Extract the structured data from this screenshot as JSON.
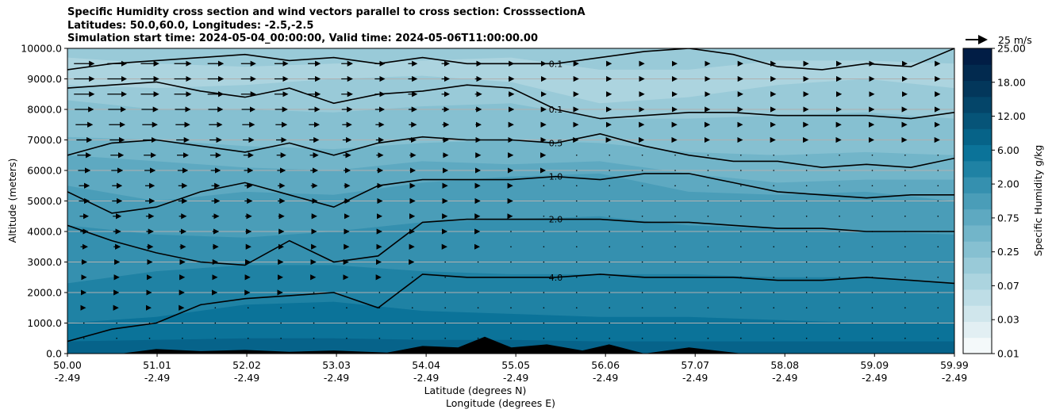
{
  "chart_data": {
    "type": "contour",
    "title_lines": [
      "Specific Humidity cross section and wind vectors parallel to cross section: CrosssectionA",
      "Latitudes: 50.0,60.0, Longitudes: -2.5,-2.5",
      "Simulation start time: 2024-05-04_00:00:00, Valid time: 2024-05-06T11:00:00.00"
    ],
    "ylabel": "Altitude (meters)",
    "xlabel_lat": "Latitude (degrees N)",
    "xlabel_lon": "Longitude (degrees E)",
    "ylim": [
      0,
      10000
    ],
    "xlim": [
      50.0,
      59.99
    ],
    "y_ticks": [
      "0.0",
      "1000.0",
      "2000.0",
      "3000.0",
      "4000.0",
      "5000.0",
      "6000.0",
      "7000.0",
      "8000.0",
      "9000.0",
      "10000.0"
    ],
    "y_tick_values": [
      0,
      1000,
      2000,
      3000,
      4000,
      5000,
      6000,
      7000,
      8000,
      9000,
      10000
    ],
    "x_tick_lat": [
      "50.00",
      "51.01",
      "52.02",
      "53.03",
      "54.04",
      "55.05",
      "56.06",
      "57.07",
      "58.08",
      "59.09",
      "59.99"
    ],
    "x_tick_lon": [
      "-2.49",
      "-2.49",
      "-2.49",
      "-2.49",
      "-2.49",
      "-2.49",
      "-2.49",
      "-2.49",
      "-2.49",
      "-2.49",
      "-2.49"
    ],
    "x_tick_values": [
      50.0,
      51.01,
      52.02,
      53.03,
      54.04,
      55.05,
      56.06,
      57.07,
      58.08,
      59.09,
      59.99
    ],
    "colorbar": {
      "label": "Specific Humidity g/kg",
      "tick_labels": [
        "0.01",
        "0.03",
        "0.07",
        "0.25",
        "0.75",
        "2.00",
        "6.00",
        "12.00",
        "18.00",
        "25.00"
      ],
      "levels": [
        0.01,
        0.02,
        0.03,
        0.05,
        0.07,
        0.1,
        0.25,
        0.5,
        0.75,
        1.0,
        2.0,
        4.0,
        6.0,
        8.0,
        12.0,
        15.0,
        18.0,
        21.0,
        25.0
      ],
      "colors": [
        "#f4f9fa",
        "#e2eff3",
        "#d0e6ec",
        "#bedde6",
        "#acd4df",
        "#99cad8",
        "#86c0d1",
        "#72b5c9",
        "#5ea9c1",
        "#4a9db8",
        "#3590af",
        "#1f82a4",
        "#0b7399",
        "#066388",
        "#065478",
        "#044569",
        "#03375b",
        "#022a4f",
        "#011d45"
      ]
    },
    "humidity_bands": [
      {
        "level": 0.07,
        "color": "#acd4df",
        "z": [
          9700,
          9500,
          9400,
          9500,
          9600,
          9700,
          9300,
          9300,
          9600,
          9600,
          9500
        ]
      },
      {
        "level": 0.1,
        "color": "#99cad8",
        "z": [
          8800,
          8700,
          8800,
          9000,
          9100,
          8900,
          8200,
          8400,
          8800,
          9000,
          8700
        ]
      },
      {
        "level": 0.25,
        "color": "#86c0d1",
        "z": [
          8300,
          8000,
          8000,
          7900,
          8100,
          8200,
          7700,
          7700,
          7800,
          7900,
          7700
        ]
      },
      {
        "level": 0.5,
        "color": "#72b5c9",
        "z": [
          7100,
          7000,
          6800,
          6700,
          6900,
          7000,
          6900,
          6600,
          6500,
          6600,
          6500
        ]
      },
      {
        "level": 0.75,
        "color": "#5ea9c1",
        "z": [
          6500,
          6300,
          6100,
          6000,
          6300,
          6200,
          6300,
          5900,
          5600,
          5700,
          5700
        ]
      },
      {
        "level": 1.0,
        "color": "#4a9db8",
        "z": [
          5500,
          5000,
          5300,
          5200,
          5600,
          5800,
          5900,
          5300,
          5200,
          5300,
          5000
        ]
      },
      {
        "level": 2.0,
        "color": "#3590af",
        "z": [
          4200,
          3900,
          3800,
          4000,
          4300,
          4400,
          4500,
          4200,
          4100,
          4000,
          3900
        ]
      },
      {
        "level": 4.0,
        "color": "#1f82a4",
        "z": [
          2300,
          2700,
          2900,
          2900,
          2700,
          2600,
          2600,
          2600,
          2500,
          2500,
          2300
        ]
      },
      {
        "level": 6.0,
        "color": "#0b7399",
        "z": [
          1000,
          1200,
          1600,
          1700,
          1400,
          1300,
          1200,
          1200,
          1100,
          1000,
          1000
        ]
      },
      {
        "level": 8.0,
        "color": "#06638a",
        "z": [
          400,
          450,
          500,
          500,
          450,
          450,
          400,
          400,
          400,
          400,
          400
        ]
      }
    ],
    "contour_lines": [
      {
        "label": "0.1",
        "x": [
          50.0,
          50.5,
          51.0,
          51.5,
          52.0,
          52.5,
          53.0,
          53.5,
          54.0,
          54.5,
          55.0,
          55.5,
          56.0,
          56.5,
          57.0,
          57.5,
          58.0,
          58.5,
          59.0,
          59.5,
          59.99
        ],
        "y": [
          9300,
          9500,
          9600,
          9700,
          9800,
          9600,
          9700,
          9500,
          9700,
          9500,
          9500,
          9500,
          9700,
          9900,
          10000,
          9800,
          9400,
          9300,
          9500,
          9400,
          10000
        ]
      },
      {
        "label": "0.1",
        "x": [
          50.0,
          50.5,
          51.0,
          51.5,
          52.0,
          52.5,
          53.0,
          53.5,
          54.0,
          54.5,
          55.0,
          55.5,
          56.0,
          56.5,
          57.0,
          57.5,
          58.0,
          58.5,
          59.0,
          59.5,
          59.99
        ],
        "y": [
          8700,
          8800,
          8900,
          8600,
          8400,
          8700,
          8200,
          8500,
          8600,
          8800,
          8700,
          8000,
          7700,
          7800,
          7900,
          7900,
          7800,
          7800,
          7800,
          7700,
          7900
        ]
      },
      {
        "label": "0.5",
        "x": [
          50.0,
          50.5,
          51.0,
          51.5,
          52.0,
          52.5,
          53.0,
          53.5,
          54.0,
          54.5,
          55.0,
          55.5,
          56.0,
          56.5,
          57.0,
          57.5,
          58.0,
          58.5,
          59.0,
          59.5,
          59.99
        ],
        "y": [
          6500,
          6900,
          7000,
          6800,
          6600,
          6900,
          6500,
          6900,
          7100,
          7000,
          7000,
          6900,
          7200,
          6800,
          6500,
          6300,
          6300,
          6100,
          6200,
          6100,
          6400
        ]
      },
      {
        "label": "1.0",
        "x": [
          50.0,
          50.5,
          51.0,
          51.5,
          52.0,
          52.5,
          53.0,
          53.5,
          54.0,
          54.5,
          55.0,
          55.5,
          56.0,
          56.5,
          57.0,
          57.5,
          58.0,
          58.5,
          59.0,
          59.5,
          59.99
        ],
        "y": [
          5300,
          4600,
          4800,
          5300,
          5600,
          5200,
          4800,
          5500,
          5700,
          5700,
          5700,
          5800,
          5700,
          5900,
          5900,
          5600,
          5300,
          5200,
          5100,
          5200,
          5200
        ]
      },
      {
        "label": "2.0",
        "x": [
          50.0,
          50.5,
          51.0,
          51.5,
          52.0,
          52.5,
          53.0,
          53.5,
          54.0,
          54.5,
          55.0,
          55.5,
          56.0,
          56.5,
          57.0,
          57.5,
          58.0,
          58.5,
          59.0,
          59.5,
          59.99
        ],
        "y": [
          4200,
          3700,
          3300,
          3000,
          2900,
          3700,
          3000,
          3200,
          4300,
          4400,
          4400,
          4400,
          4400,
          4300,
          4300,
          4200,
          4100,
          4100,
          4000,
          4000,
          4000
        ]
      },
      {
        "label": "4.0",
        "x": [
          50.0,
          50.5,
          51.0,
          51.5,
          52.0,
          52.5,
          53.0,
          53.5,
          54.0,
          54.5,
          55.0,
          55.5,
          56.0,
          56.5,
          57.0,
          57.5,
          58.0,
          58.5,
          59.0,
          59.5,
          59.99
        ],
        "y": [
          400,
          800,
          1000,
          1600,
          1800,
          1900,
          2000,
          1500,
          2600,
          2500,
          2500,
          2500,
          2600,
          2500,
          2500,
          2500,
          2400,
          2400,
          2500,
          2400,
          2300
        ]
      }
    ],
    "terrain": {
      "x": [
        50.0,
        50.6,
        51.0,
        51.5,
        52.0,
        52.5,
        53.0,
        53.6,
        54.0,
        54.4,
        54.7,
        55.0,
        55.4,
        55.8,
        56.1,
        56.5,
        57.0,
        57.6,
        58.0,
        59.99
      ],
      "y": [
        0,
        0,
        150,
        80,
        120,
        60,
        100,
        30,
        250,
        200,
        550,
        200,
        300,
        100,
        300,
        0,
        200,
        0,
        0,
        0
      ]
    },
    "wind_vectors": {
      "reference_label": "25 m/s",
      "reference_speed": 25,
      "rows_alt": [
        9500,
        9000,
        8500,
        8000,
        7500,
        7000,
        6500,
        6000,
        5500,
        5000,
        4500,
        4000,
        3500,
        3000,
        2500,
        2000,
        1500,
        1000,
        500
      ],
      "max_speed": [
        24,
        24,
        24,
        22,
        20,
        18,
        16,
        14,
        12,
        12,
        10,
        9,
        8,
        6,
        5,
        4,
        3,
        2,
        1
      ],
      "columns": 27
    }
  }
}
